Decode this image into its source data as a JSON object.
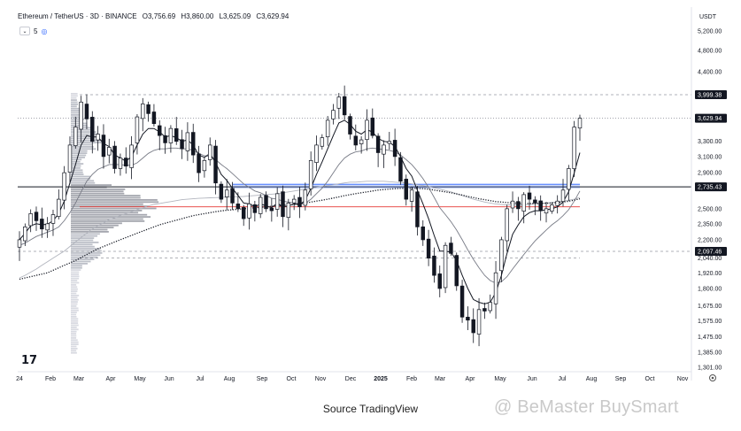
{
  "header": {
    "symbol": "Ethereum / TetherUS · 3D · BINANCE",
    "open": "O3,756.69",
    "high": "H3,860.00",
    "low": "L3,625.09",
    "close": "C3,629.94",
    "indicator_value": "5",
    "currency": "USDT"
  },
  "caption": "Source TradingView",
  "watermark": "@ BeMaster BuySmart",
  "logo_text": "17",
  "colors": {
    "up": "#ffffff",
    "down": "#131722",
    "blue_zone": "#2962ff",
    "red_line": "#e53935",
    "price_tag": "#131722"
  },
  "chart_data": {
    "type": "candlestick",
    "y_axis_scale": "log",
    "y_ticks": [
      "5,200.00",
      "4,800.00",
      "4,400.00",
      "3,999.38",
      "3,629.94",
      "3,300.00",
      "3,100.00",
      "2,900.00",
      "2,735.43",
      "2,500.00",
      "2,350.00",
      "2,200.00",
      "2,097.46",
      "2,040.00",
      "1,920.00",
      "1,800.00",
      "1,675.00",
      "1,575.00",
      "1,475.00",
      "1,385.00",
      "1,301.00"
    ],
    "x_ticks": [
      "24",
      "Feb",
      "Mar",
      "Apr",
      "May",
      "Jun",
      "Jul",
      "Aug",
      "Sep",
      "Oct",
      "Nov",
      "Dec",
      "2025",
      "Feb",
      "Mar",
      "Apr",
      "May",
      "Jun",
      "Jul",
      "Aug",
      "Sep",
      "Oct",
      "Nov"
    ],
    "price_labels": [
      "3,999.38",
      "3,629.94",
      "2,735.43",
      "2,097.46"
    ],
    "levels": [
      {
        "price": 3999.38,
        "style": "dashed"
      },
      {
        "price": 3629.94,
        "style": "dotted"
      },
      {
        "price": 2735.43,
        "style": "solid"
      },
      {
        "price": 2097.46,
        "style": "dashed"
      },
      {
        "price": 2040.0,
        "style": "dashed"
      }
    ],
    "closes": [
      2200,
      2320,
      2450,
      2380,
      2300,
      2350,
      2440,
      2600,
      2900,
      3250,
      3500,
      3880,
      3620,
      3300,
      3400,
      3100,
      3220,
      2950,
      3080,
      2980,
      3250,
      3650,
      3850,
      3700,
      3550,
      3380,
      3280,
      3480,
      3300,
      3200,
      3420,
      3120,
      2900,
      3050,
      3250,
      2780,
      2600,
      2700,
      2560,
      2500,
      2400,
      2550,
      2460,
      2620,
      2500,
      2480,
      2660,
      2420,
      2560,
      2600,
      2520,
      2700,
      3050,
      3250,
      3350,
      3600,
      3750,
      3960,
      3680,
      3400,
      3250,
      3320,
      3600,
      3380,
      3150,
      3250,
      3300,
      3100,
      2800,
      2600,
      2700,
      2320,
      2200,
      2040,
      1900,
      1800,
      2150,
      2080,
      1820,
      1600,
      1580,
      1500,
      1650,
      1640,
      1700,
      1920,
      2200,
      2500,
      2580,
      2500,
      2650,
      2600,
      2560,
      2480,
      2500,
      2540,
      2580,
      2700,
      2950,
      3500,
      3630
    ],
    "ma_fast": [
      2200,
      2260,
      2330,
      2350,
      2340,
      2345,
      2380,
      2450,
      2580,
      2780,
      3000,
      3250,
      3380,
      3360,
      3360,
      3270,
      3230,
      3120,
      3080,
      3040,
      3100,
      3250,
      3400,
      3480,
      3480,
      3430,
      3360,
      3380,
      3350,
      3300,
      3320,
      3250,
      3120,
      3090,
      3140,
      3020,
      2880,
      2810,
      2720,
      2640,
      2560,
      2550,
      2520,
      2550,
      2530,
      2510,
      2560,
      2520,
      2530,
      2550,
      2540,
      2590,
      2720,
      2880,
      3030,
      3200,
      3380,
      3560,
      3600,
      3540,
      3440,
      3400,
      3460,
      3430,
      3340,
      3300,
      3290,
      3230,
      3100,
      2950,
      2860,
      2700,
      2550,
      2400,
      2240,
      2100,
      2100,
      2090,
      2020,
      1900,
      1800,
      1720,
      1700,
      1690,
      1700,
      1770,
      1900,
      2080,
      2250,
      2340,
      2420,
      2460,
      2480,
      2480,
      2490,
      2500,
      2520,
      2570,
      2680,
      2900,
      3150
    ],
    "ma_mid": [
      2150,
      2170,
      2200,
      2230,
      2250,
      2270,
      2290,
      2320,
      2380,
      2460,
      2560,
      2680,
      2800,
      2880,
      2940,
      2970,
      3000,
      3000,
      3000,
      2990,
      2990,
      3020,
      3080,
      3140,
      3180,
      3200,
      3200,
      3210,
      3210,
      3200,
      3200,
      3180,
      3140,
      3110,
      3100,
      3060,
      3000,
      2950,
      2890,
      2830,
      2770,
      2730,
      2690,
      2670,
      2640,
      2610,
      2600,
      2580,
      2570,
      2560,
      2550,
      2560,
      2600,
      2660,
      2720,
      2800,
      2900,
      3000,
      3080,
      3130,
      3160,
      3170,
      3200,
      3210,
      3200,
      3190,
      3180,
      3160,
      3120,
      3060,
      3000,
      2920,
      2830,
      2730,
      2620,
      2510,
      2440,
      2370,
      2290,
      2200,
      2110,
      2030,
      1960,
      1900,
      1860,
      1840,
      1850,
      1890,
      1950,
      2010,
      2070,
      2130,
      2190,
      2240,
      2290,
      2340,
      2380,
      2430,
      2490,
      2580,
      2690
    ],
    "ma_slow": [
      1880,
      1900,
      1925,
      1950,
      1980,
      2010,
      2040,
      2070,
      2100,
      2140,
      2180,
      2220,
      2260,
      2300,
      2330,
      2360,
      2390,
      2410,
      2430,
      2450,
      2470,
      2490,
      2510,
      2530,
      2545,
      2555,
      2565,
      2575,
      2585,
      2595,
      2600,
      2605,
      2610,
      2612,
      2615,
      2617,
      2620,
      2622,
      2625,
      2628,
      2630,
      2635,
      2640,
      2645,
      2650,
      2655,
      2660,
      2670,
      2680,
      2690,
      2700,
      2710,
      2720,
      2730,
      2740,
      2750,
      2760,
      2770,
      2780,
      2790,
      2790,
      2795,
      2800,
      2800,
      2800,
      2800,
      2795,
      2790,
      2785,
      2780,
      2770,
      2760,
      2750,
      2740,
      2725,
      2710,
      2695,
      2680,
      2660,
      2640,
      2620,
      2600,
      2585,
      2570,
      2560,
      2550,
      2545,
      2540,
      2540,
      2540,
      2540,
      2545,
      2550,
      2555,
      2560,
      2565,
      2570,
      2580,
      2590,
      2600,
      2620
    ],
    "ma_dotted": [
      1870,
      1880,
      1890,
      1900,
      1910,
      1920,
      1940,
      1960,
      1980,
      2000,
      2020,
      2045,
      2070,
      2095,
      2120,
      2140,
      2160,
      2180,
      2200,
      2220,
      2240,
      2260,
      2280,
      2300,
      2320,
      2340,
      2355,
      2370,
      2385,
      2400,
      2415,
      2430,
      2440,
      2450,
      2460,
      2470,
      2478,
      2485,
      2490,
      2495,
      2500,
      2505,
      2510,
      2515,
      2520,
      2525,
      2530,
      2535,
      2540,
      2545,
      2552,
      2560,
      2570,
      2580,
      2590,
      2600,
      2612,
      2625,
      2638,
      2650,
      2660,
      2670,
      2680,
      2690,
      2700,
      2705,
      2710,
      2715,
      2718,
      2720,
      2720,
      2718,
      2715,
      2710,
      2700,
      2690,
      2680,
      2670,
      2658,
      2645,
      2630,
      2618,
      2605,
      2595,
      2585,
      2575,
      2570,
      2565,
      2560,
      2558,
      2556,
      2555,
      2555,
      2556,
      2558,
      2560,
      2565,
      2570,
      2578,
      2590,
      2605
    ]
  }
}
